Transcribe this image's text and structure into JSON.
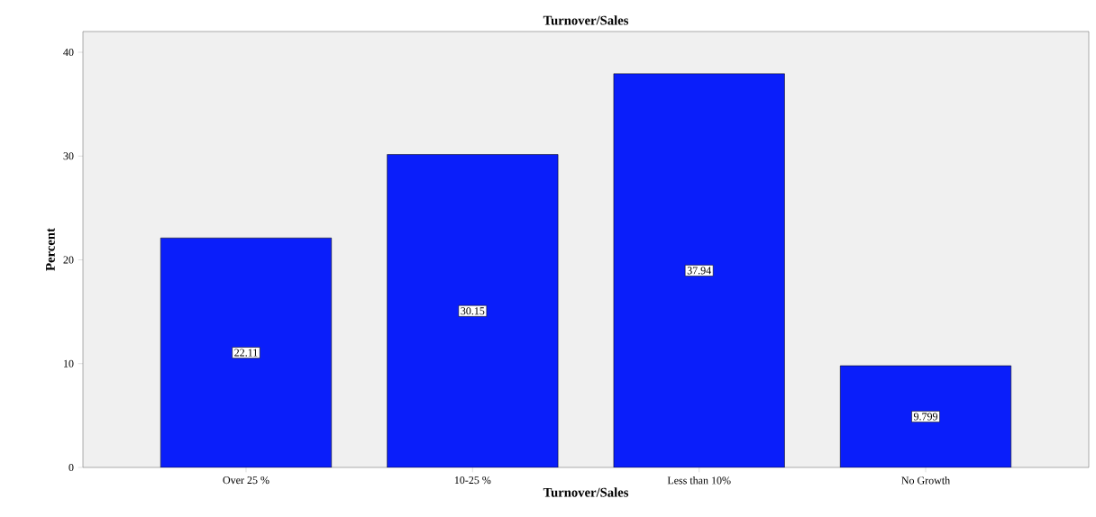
{
  "chart_data": {
    "type": "bar",
    "title": "Turnover/Sales",
    "xlabel": "Turnover/Sales",
    "ylabel": "Percent",
    "categories": [
      "Over 25 %",
      "10-25 %",
      "Less than 10%",
      "No Growth"
    ],
    "values": [
      22.11,
      30.15,
      37.94,
      9.799
    ],
    "color": "#0a1efa",
    "ylim": [
      0,
      42
    ],
    "yticks": [
      0,
      10,
      20,
      30,
      40
    ],
    "data_labels": true,
    "grid": false
  }
}
